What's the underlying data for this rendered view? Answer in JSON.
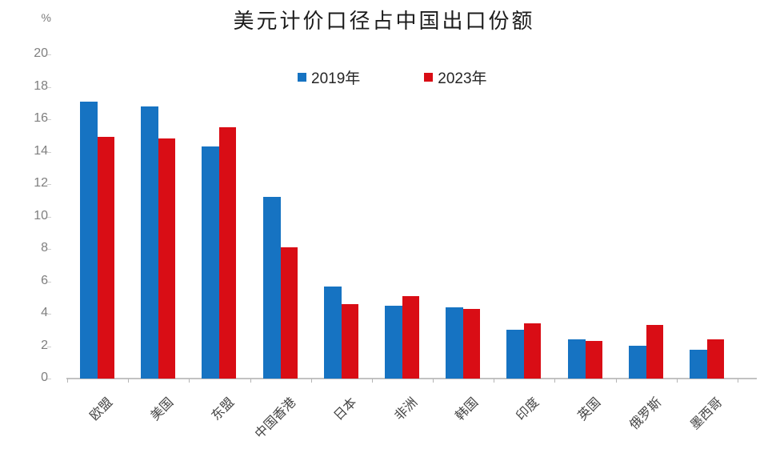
{
  "chart_data": {
    "type": "bar",
    "title": "美元计价口径占中国出口份额",
    "unit_label": "%",
    "categories": [
      "欧盟",
      "美国",
      "东盟",
      "中国香港",
      "日本",
      "非洲",
      "韩国",
      "印度",
      "英国",
      "俄罗斯",
      "墨西哥"
    ],
    "series": [
      {
        "name": "2019年",
        "color": "#1673C2",
        "values": [
          17.1,
          16.8,
          14.3,
          11.2,
          5.7,
          4.5,
          4.4,
          3.0,
          2.4,
          2.0,
          1.8
        ]
      },
      {
        "name": "2023年",
        "color": "#D90D15",
        "values": [
          14.9,
          14.8,
          15.5,
          8.1,
          4.6,
          5.1,
          4.3,
          3.4,
          2.3,
          3.3,
          2.4
        ]
      }
    ],
    "ylim": [
      0,
      20
    ],
    "ytick_step": 2,
    "grid": false,
    "legend_position": "top-center",
    "xlabel": "",
    "ylabel": "%",
    "axis_color": "#c2c2c2",
    "tick_label_color": "#7f7f7f",
    "category_label_color": "#454545"
  }
}
